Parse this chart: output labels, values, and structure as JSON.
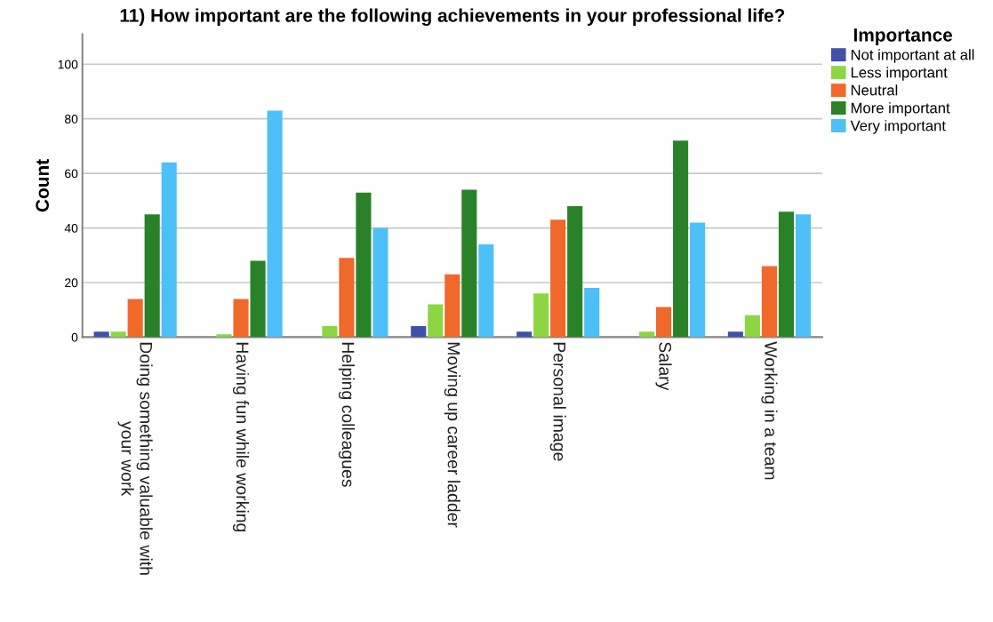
{
  "chart_data": {
    "type": "bar",
    "title": "11) How important are the following achievements in your professional life?",
    "ylabel": "Count",
    "legend_title": "Importance",
    "categories": [
      "Doing something valuable with\nyour work",
      "Having fun while working",
      "Helping colleagues",
      "Moving up career ladder",
      "Personal image",
      "Salary",
      "Working in a team"
    ],
    "series": [
      {
        "name": "Not important at all",
        "color": "#3f51a8",
        "values": [
          2,
          null,
          null,
          4,
          2,
          null,
          2
        ]
      },
      {
        "name": "Less important",
        "color": "#8cd642",
        "values": [
          2,
          1,
          4,
          12,
          16,
          2,
          8
        ]
      },
      {
        "name": "Neutral",
        "color": "#f0682a",
        "values": [
          14,
          14,
          29,
          23,
          43,
          11,
          26
        ]
      },
      {
        "name": "More important",
        "color": "#2a8228",
        "values": [
          45,
          28,
          53,
          54,
          48,
          72,
          46
        ]
      },
      {
        "name": "Very important",
        "color": "#4ec0f8",
        "values": [
          64,
          83,
          40,
          34,
          18,
          42,
          45
        ]
      }
    ],
    "ylim": [
      0,
      111
    ],
    "yticks": [
      0,
      20,
      40,
      60,
      80,
      100
    ],
    "grid": "y",
    "legend": "top right"
  }
}
